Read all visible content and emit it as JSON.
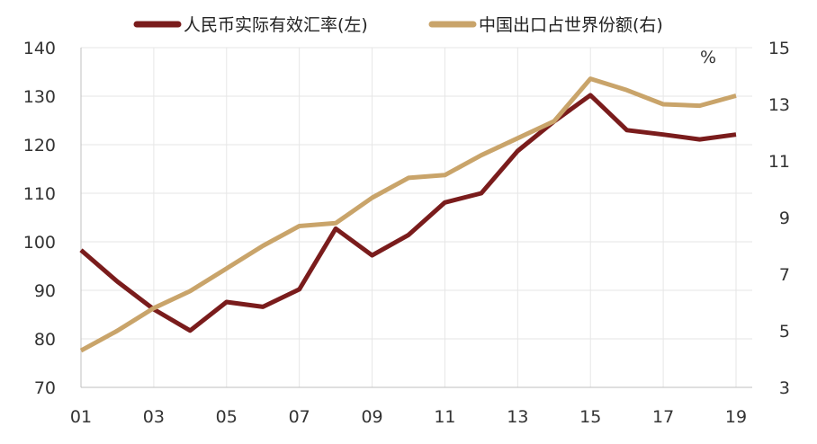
{
  "chart_data": {
    "type": "line",
    "x": [
      "01",
      "02",
      "03",
      "04",
      "05",
      "06",
      "07",
      "08",
      "09",
      "10",
      "11",
      "12",
      "13",
      "14",
      "15",
      "16",
      "17",
      "18",
      "19"
    ],
    "x_tick_labels": [
      "01",
      "03",
      "05",
      "07",
      "09",
      "11",
      "13",
      "15",
      "17",
      "19"
    ],
    "series": [
      {
        "name": "人民币实际有效汇率(左)",
        "axis": "left",
        "color": "#7a1c1c",
        "values": [
          98.3,
          91.8,
          86.1,
          81.7,
          87.6,
          86.6,
          90.2,
          102.7,
          97.2,
          101.4,
          108.1,
          110.0,
          118.7,
          124.8,
          130.2,
          123.0,
          122.1,
          121.1,
          122.1
        ]
      },
      {
        "name": "中国出口占世界份额(右)",
        "axis": "right",
        "color": "#c9a46a",
        "values": [
          4.3,
          5.0,
          5.8,
          6.4,
          7.2,
          8.0,
          8.7,
          8.8,
          9.7,
          10.4,
          10.5,
          11.2,
          11.8,
          12.4,
          13.9,
          13.5,
          13.0,
          12.95,
          13.3
        ]
      }
    ],
    "y_left": {
      "ylim": [
        70,
        140
      ],
      "ticks": [
        70,
        80,
        90,
        100,
        110,
        120,
        130,
        140
      ]
    },
    "y_right": {
      "ylim": [
        3,
        15
      ],
      "ticks": [
        3,
        5,
        7,
        9,
        11,
        13,
        15
      ],
      "unit": "%"
    },
    "grid": true,
    "legend_position": "top-center"
  }
}
